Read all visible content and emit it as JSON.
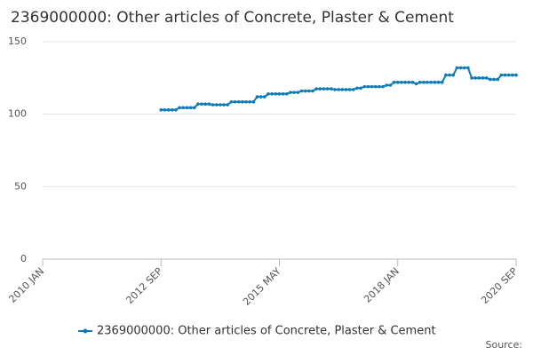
{
  "chart_data": {
    "type": "line",
    "title": "2369000000: Other articles of Concrete, Plaster & Cement",
    "source_label": "Source:",
    "x": [
      "2012-09",
      "2012-10",
      "2012-11",
      "2012-12",
      "2013-01",
      "2013-02",
      "2013-03",
      "2013-04",
      "2013-05",
      "2013-06",
      "2013-07",
      "2013-08",
      "2013-09",
      "2013-10",
      "2013-11",
      "2013-12",
      "2014-01",
      "2014-02",
      "2014-03",
      "2014-04",
      "2014-05",
      "2014-06",
      "2014-07",
      "2014-08",
      "2014-09",
      "2014-10",
      "2014-11",
      "2014-12",
      "2015-01",
      "2015-02",
      "2015-03",
      "2015-04",
      "2015-05",
      "2015-06",
      "2015-07",
      "2015-08",
      "2015-09",
      "2015-10",
      "2015-11",
      "2015-12",
      "2016-01",
      "2016-02",
      "2016-03",
      "2016-04",
      "2016-05",
      "2016-06",
      "2016-07",
      "2016-08",
      "2016-09",
      "2016-10",
      "2016-11",
      "2016-12",
      "2017-01",
      "2017-02",
      "2017-03",
      "2017-04",
      "2017-05",
      "2017-06",
      "2017-07",
      "2017-08",
      "2017-09",
      "2017-10",
      "2017-11",
      "2017-12",
      "2018-01",
      "2018-02",
      "2018-03",
      "2018-04",
      "2018-05",
      "2018-06",
      "2018-07",
      "2018-08",
      "2018-09",
      "2018-10",
      "2018-11",
      "2018-12",
      "2019-01",
      "2019-02",
      "2019-03",
      "2019-04",
      "2019-05",
      "2019-06",
      "2019-07",
      "2019-08",
      "2019-09",
      "2019-10",
      "2019-11",
      "2019-12",
      "2020-01",
      "2020-02",
      "2020-03",
      "2020-04",
      "2020-05",
      "2020-06",
      "2020-07",
      "2020-08",
      "2020-09"
    ],
    "series": [
      {
        "name": "2369000000: Other articles of Concrete, Plaster & Cement",
        "color": "#0e7ab8",
        "values": [
          103,
          103,
          103,
          103,
          103,
          104.5,
          104.5,
          104.5,
          104.5,
          104.5,
          107,
          107,
          107,
          107,
          106.5,
          106.5,
          106.5,
          106.5,
          106.5,
          108.5,
          108.5,
          108.5,
          108.5,
          108.5,
          108.5,
          108.5,
          112,
          112,
          112,
          114,
          114,
          114,
          114,
          114,
          114,
          115,
          115,
          115,
          116,
          116,
          116,
          116,
          117.5,
          117.5,
          117.5,
          117.5,
          117.5,
          117,
          117,
          117,
          117,
          117,
          117,
          118,
          118,
          119,
          119,
          119,
          119,
          119,
          119,
          120,
          120,
          122,
          122,
          122,
          122,
          122,
          122,
          121,
          122,
          122,
          122,
          122,
          122,
          122,
          122,
          127,
          127,
          127,
          132,
          132,
          132,
          132,
          125,
          125,
          125,
          125,
          125,
          124,
          124,
          124,
          127,
          127,
          127,
          127,
          127
        ]
      }
    ],
    "xlim": [
      "2010-01",
      "2020-09"
    ],
    "xticks": [
      {
        "value": "2010-01",
        "label": "2010 JAN"
      },
      {
        "value": "2012-09",
        "label": "2012 SEP"
      },
      {
        "value": "2015-05",
        "label": "2015 MAY"
      },
      {
        "value": "2018-01",
        "label": "2018 JAN"
      },
      {
        "value": "2020-09",
        "label": "2020 SEP"
      }
    ],
    "ylim": [
      0,
      150
    ],
    "yticks": [
      0,
      50,
      100,
      150
    ],
    "grid": true
  }
}
